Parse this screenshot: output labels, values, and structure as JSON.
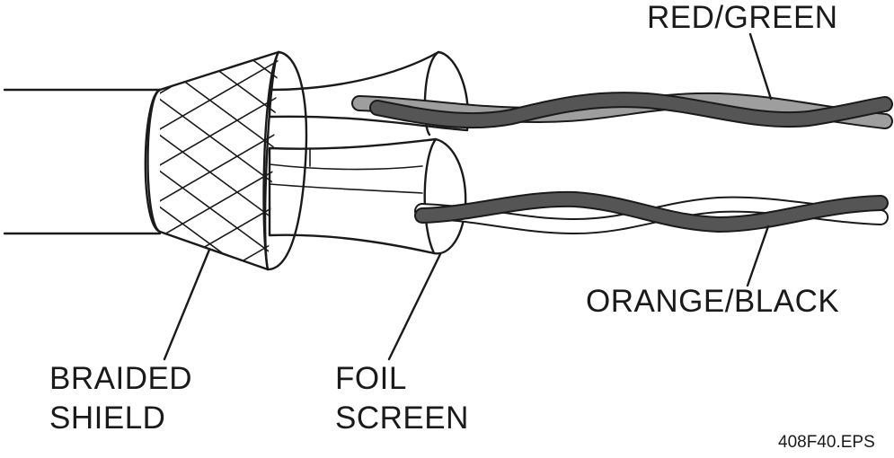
{
  "labels": {
    "red_green": "RED/GREEN",
    "orange_black": "ORANGE/BLACK",
    "braided_shield_line1": "BRAIDED",
    "braided_shield_line2": "SHIELD",
    "foil_screen_line1": "FOIL",
    "foil_screen_line2": "SCREEN",
    "figure_id": "408F40.EPS"
  },
  "colors": {
    "outline": "#1a1a1a",
    "wire_red": "#9e9e9e",
    "wire_green": "#555555",
    "wire_orange": "#ffffff",
    "wire_black": "#555555",
    "background": "#ffffff"
  }
}
